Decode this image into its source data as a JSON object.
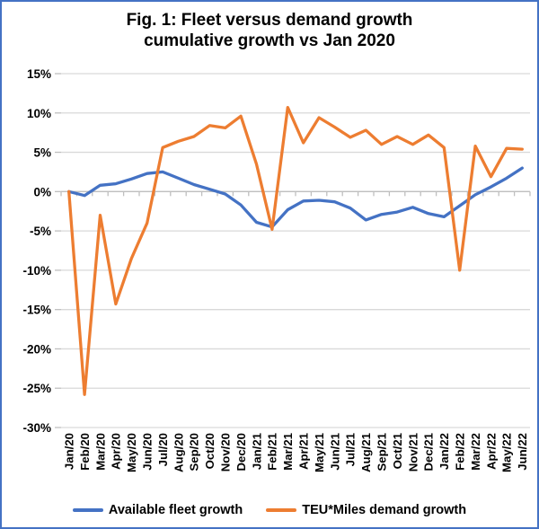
{
  "window": {
    "background": "#FFFFFF",
    "border_color": "#4472C4",
    "text_color": "#000000"
  },
  "chart_data": {
    "type": "line",
    "title_lines": [
      "Fig. 1: Fleet versus demand growth",
      "cumulative growth vs Jan 2020"
    ],
    "xlabel": "",
    "ylabel": "",
    "ylim": [
      -30,
      15
    ],
    "ytick_step": 5,
    "ytick_labels": [
      "15%",
      "10%",
      "5%",
      "0%",
      "-5%",
      "-10%",
      "-15%",
      "-20%",
      "-25%",
      "-30%"
    ],
    "grid": true,
    "gridline_color": "#D9D9D9",
    "axis_color": "#BFBFBF",
    "legend_position": "bottom",
    "categories": [
      "Jan/20",
      "Feb/20",
      "Mar/20",
      "Apr/20",
      "May/20",
      "Jun/20",
      "Jul/20",
      "Aug/20",
      "Sep/20",
      "Oct/20",
      "Nov/20",
      "Dec/20",
      "Jan/21",
      "Feb/21",
      "Mar/21",
      "Apr/21",
      "May/21",
      "Jun/21",
      "Jul/21",
      "Aug/21",
      "Sep/21",
      "Oct/21",
      "Nov/21",
      "Dec/21",
      "Jan/22",
      "Feb/22",
      "Mar/22",
      "Apr/22",
      "May/22",
      "Jun/22"
    ],
    "series": [
      {
        "name": "Available fleet growth",
        "color": "#4472C4",
        "values": [
          0,
          -0.5,
          0.8,
          1.0,
          1.6,
          2.3,
          2.5,
          1.7,
          0.9,
          0.3,
          -0.3,
          -1.7,
          -3.9,
          -4.5,
          -2.3,
          -1.2,
          -1.1,
          -1.3,
          -2.1,
          -3.6,
          -2.9,
          -2.6,
          -2.0,
          -2.8,
          -3.2,
          -1.8,
          -0.4,
          0.6,
          1.7,
          3.0
        ]
      },
      {
        "name": "TEU*Miles demand growth",
        "color": "#ED7D31",
        "values": [
          0,
          -25.8,
          -3.0,
          -14.3,
          -8.5,
          -4.0,
          5.6,
          6.4,
          7.0,
          8.4,
          8.1,
          9.6,
          3.5,
          -4.8,
          10.7,
          6.2,
          9.4,
          8.2,
          6.9,
          7.8,
          6.0,
          7.0,
          6.0,
          7.2,
          5.6,
          -10.0,
          5.8,
          1.9,
          5.5,
          5.4
        ]
      }
    ]
  }
}
